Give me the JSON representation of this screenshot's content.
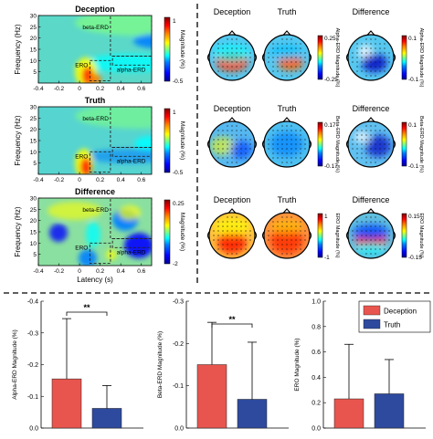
{
  "colors": {
    "deception": "#e8554e",
    "truth": "#2e4a9e",
    "divider": "#000000",
    "jet": [
      "#00008f",
      "#0000ff",
      "#0080ff",
      "#00ffff",
      "#80ff80",
      "#ffff00",
      "#ff8000",
      "#ff0000",
      "#800000"
    ]
  },
  "tf_panels": [
    {
      "title": "Deception",
      "ylabel": "Frequency (Hz)",
      "yticks": [
        "30",
        "25",
        "20",
        "15",
        "10",
        "5"
      ],
      "xticks": [
        "-0.4",
        "-0.2",
        "0",
        "0.2",
        "0.4",
        "0.6"
      ],
      "xlabel": "",
      "colorbar_top": "1",
      "colorbar_bottom": "-0.5",
      "colorbar_label": "Magnitude (%)",
      "labels": {
        "beta": "beta-ERD",
        "alpha": "alpha-ERD",
        "ero": "ERO"
      }
    },
    {
      "title": "Truth",
      "ylabel": "Frequency (Hz)",
      "yticks": [
        "30",
        "25",
        "20",
        "15",
        "10",
        "5"
      ],
      "xticks": [
        "-0.4",
        "-0.2",
        "0",
        "0.2",
        "0.4",
        "0.6"
      ],
      "xlabel": "",
      "colorbar_top": "1",
      "colorbar_bottom": "-0.5",
      "colorbar_label": "Magnitude (%)",
      "labels": {
        "beta": "beta-ERD",
        "alpha": "alpha-ERD",
        "ero": "ERO"
      }
    },
    {
      "title": "Difference",
      "ylabel": "Frequency (Hz)",
      "yticks": [
        "30",
        "25",
        "20",
        "15",
        "10",
        "5"
      ],
      "xticks": [
        "-0.4",
        "-0.2",
        "0",
        "0.2",
        "0.4",
        "0.6"
      ],
      "xlabel": "Latency (s)",
      "colorbar_top": "0.25",
      "colorbar_bottom": "-2",
      "colorbar_label": "Magnitude (%)",
      "labels": {
        "beta": "beta-ERD",
        "alpha": "alpha-ERD",
        "ero": "ERO"
      }
    }
  ],
  "topo_rows": [
    {
      "titles": [
        "Deception",
        "Truth"
      ],
      "cb1_top": "0.25",
      "cb1_bottom": "-0.25",
      "cb1_label": "Alpha-ERD Magnitude (%)",
      "diff_title": "Difference",
      "cb2_top": "0.1",
      "cb2_bottom": "-0.1",
      "cb2_label": "Alpha-ERD Magnitude (%)"
    },
    {
      "titles": [
        "Deception",
        "Truth"
      ],
      "cb1_top": "0.17",
      "cb1_bottom": "-0.17",
      "cb1_label": "Beta-ERD Magnitude (%)",
      "diff_title": "Difference",
      "cb2_top": "0.1",
      "cb2_bottom": "-0.1",
      "cb2_label": "Beta-ERD Magnitude (%)"
    },
    {
      "titles": [
        "Deception",
        "Truth"
      ],
      "cb1_top": "1",
      "cb1_bottom": "-1",
      "cb1_label": "ERO Magnitude (%)",
      "diff_title": "Difference",
      "cb2_top": "0.15",
      "cb2_bottom": "-0.15",
      "cb2_label": "ERO Magnitude (%)"
    }
  ],
  "chart_data": [
    {
      "type": "bar",
      "categories": [
        "Deception",
        "Truth"
      ],
      "values": [
        -0.155,
        -0.062
      ],
      "errors": [
        0.19,
        0.072
      ],
      "ylabel": "Alpha-ERD Magnitude (%)",
      "ylim": [
        0,
        -0.4
      ],
      "yticks": [
        "-0.4",
        "-0.3",
        "-0.2",
        "-0.1",
        "0.0"
      ],
      "significance": "**"
    },
    {
      "type": "bar",
      "categories": [
        "Deception",
        "Truth"
      ],
      "values": [
        -0.15,
        -0.068
      ],
      "errors": [
        0.1,
        0.135
      ],
      "ylabel": "Beta-ERD Magnitude (%)",
      "ylim": [
        0,
        -0.3
      ],
      "yticks": [
        "-0.3",
        "-0.2",
        "-0.1",
        "0.0"
      ],
      "significance": "**"
    },
    {
      "type": "bar",
      "categories": [
        "Deception",
        "Truth"
      ],
      "values": [
        0.23,
        0.27
      ],
      "errors": [
        0.43,
        0.27
      ],
      "ylabel": "ERO Magnitude (%)",
      "ylim": [
        0,
        1.0
      ],
      "yticks": [
        "1.0",
        "0.8",
        "0.6",
        "0.4",
        "0.2",
        "0.0"
      ],
      "legend": [
        "Deception",
        "Truth"
      ],
      "legend_position": "top-right"
    }
  ]
}
